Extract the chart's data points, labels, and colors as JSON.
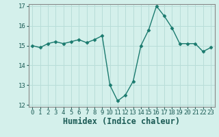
{
  "x": [
    0,
    1,
    2,
    3,
    4,
    5,
    6,
    7,
    8,
    9,
    10,
    11,
    12,
    13,
    14,
    15,
    16,
    17,
    18,
    19,
    20,
    21,
    22,
    23
  ],
  "y": [
    15.0,
    14.9,
    15.1,
    15.2,
    15.1,
    15.2,
    15.3,
    15.15,
    15.3,
    15.5,
    13.0,
    12.2,
    12.5,
    13.2,
    15.0,
    15.8,
    17.0,
    16.5,
    15.9,
    15.1,
    15.1,
    15.1,
    14.7,
    14.9
  ],
  "line_color": "#1a7a6e",
  "marker": "D",
  "marker_size": 2.5,
  "bg_color": "#d4f0eb",
  "grid_color": "#b8ddd8",
  "xlabel": "Humidex (Indice chaleur)",
  "ylim": [
    11.9,
    17.1
  ],
  "xlim": [
    -0.5,
    23.5
  ],
  "yticks": [
    12,
    13,
    14,
    15,
    16,
    17
  ],
  "xticks": [
    0,
    1,
    2,
    3,
    4,
    5,
    6,
    7,
    8,
    9,
    10,
    11,
    12,
    13,
    14,
    15,
    16,
    17,
    18,
    19,
    20,
    21,
    22,
    23
  ],
  "tick_fontsize": 6.5,
  "xlabel_fontsize": 8.5,
  "linewidth": 1.0
}
